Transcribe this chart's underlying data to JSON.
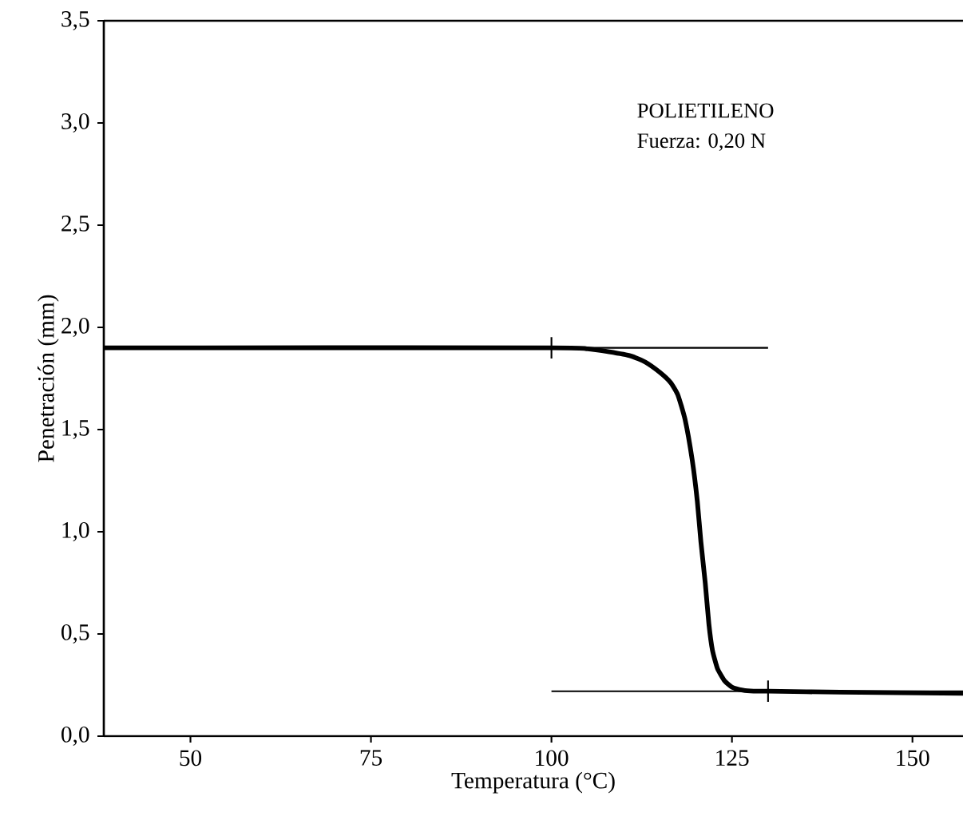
{
  "chart_data": {
    "type": "line",
    "xlabel": "Temperatura (°C)",
    "ylabel": "Penetración (mm)",
    "annotations": [
      "POLIETILENO",
      "Fuerza: 0,20 N"
    ],
    "xlim": [
      38,
      157
    ],
    "xticks": [
      50,
      75,
      100,
      125,
      150
    ],
    "ylim": [
      0,
      3.5
    ],
    "yticks": [
      {
        "value": 0,
        "label": "0,0"
      },
      {
        "value": 0.5,
        "label": "0,5"
      },
      {
        "value": 1,
        "label": "1,0"
      },
      {
        "value": 1.5,
        "label": "1,5"
      },
      {
        "value": 2,
        "label": "2,0"
      },
      {
        "value": 2.5,
        "label": "2,5"
      },
      {
        "value": 3,
        "label": "3,0"
      },
      {
        "value": 3.5,
        "label": "3,5"
      }
    ],
    "grid": false,
    "series": [
      {
        "color": "#000000",
        "x": [
          38,
          100,
          105,
          108,
          111,
          113,
          115,
          116.5,
          117.5,
          118.5,
          119.5,
          120.2,
          120.7,
          121.3,
          121.8,
          122.3,
          123,
          124,
          125,
          126.5,
          128,
          130,
          140,
          157
        ],
        "values": [
          1.9,
          1.9,
          1.895,
          1.88,
          1.86,
          1.83,
          1.78,
          1.73,
          1.67,
          1.55,
          1.35,
          1.15,
          0.95,
          0.75,
          0.55,
          0.42,
          0.33,
          0.27,
          0.24,
          0.225,
          0.22,
          0.22,
          0.215,
          0.21
        ]
      },
      {
        "color": "#000000",
        "x": [
          38,
          130
        ],
        "values": [
          1.9,
          1.9
        ]
      },
      {
        "color": "#000000",
        "x": [
          100,
          157
        ],
        "values": [
          0.22,
          0.22
        ]
      },
      {
        "type": "scatter",
        "marker": "cross",
        "color": "#000000",
        "x": [
          100,
          130
        ],
        "values": [
          1.9,
          0.22
        ]
      }
    ]
  }
}
